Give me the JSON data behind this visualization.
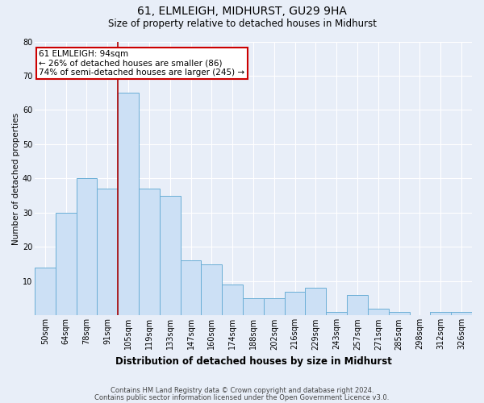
{
  "title1": "61, ELMLEIGH, MIDHURST, GU29 9HA",
  "title2": "Size of property relative to detached houses in Midhurst",
  "xlabel": "Distribution of detached houses by size in Midhurst",
  "ylabel": "Number of detached properties",
  "categories": [
    "50sqm",
    "64sqm",
    "78sqm",
    "91sqm",
    "105sqm",
    "119sqm",
    "133sqm",
    "147sqm",
    "160sqm",
    "174sqm",
    "188sqm",
    "202sqm",
    "216sqm",
    "229sqm",
    "243sqm",
    "257sqm",
    "271sqm",
    "285sqm",
    "298sqm",
    "312sqm",
    "326sqm"
  ],
  "values": [
    14,
    30,
    40,
    37,
    65,
    37,
    35,
    16,
    15,
    9,
    5,
    5,
    7,
    8,
    1,
    6,
    2,
    1,
    0,
    1,
    1
  ],
  "bar_color": "#cce0f5",
  "bar_edgecolor": "#6aaed6",
  "vline_x": 3.5,
  "vline_color": "#aa0000",
  "annotation_text": "61 ELMLEIGH: 94sqm\n← 26% of detached houses are smaller (86)\n74% of semi-detached houses are larger (245) →",
  "annotation_box_color": "white",
  "annotation_box_edgecolor": "#cc0000",
  "ylim": [
    0,
    80
  ],
  "yticks": [
    0,
    10,
    20,
    30,
    40,
    50,
    60,
    70,
    80
  ],
  "footer1": "Contains HM Land Registry data © Crown copyright and database right 2024.",
  "footer2": "Contains public sector information licensed under the Open Government Licence v3.0.",
  "bg_color": "#e8eef8",
  "plot_bg_color": "#e8eef8",
  "title1_fontsize": 10,
  "title2_fontsize": 8.5,
  "xlabel_fontsize": 8.5,
  "ylabel_fontsize": 7.5,
  "tick_fontsize": 7,
  "footer_fontsize": 6,
  "ann_fontsize": 7.5
}
